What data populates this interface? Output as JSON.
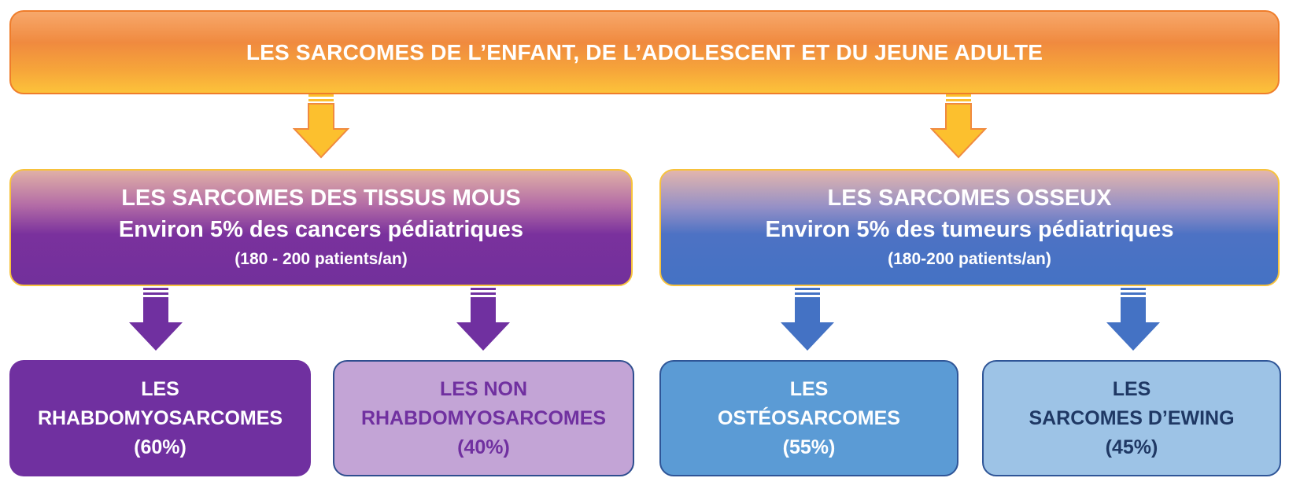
{
  "title": "LES SARCOMES DE L’ENFANT, DE L’ADOLESCENT ET DU JEUNE ADULTE",
  "categories": [
    {
      "heading": "LES SARCOMES DES TISSUS MOUS",
      "share": "Environ 5% des cancers pédiatriques",
      "patients": "(180 - 200 patients/an)",
      "color": "#7030a0"
    },
    {
      "heading": "LES SARCOMES OSSEUX",
      "share": "Environ 5% des tumeurs pédiatriques",
      "patients": "(180-200 patients/an)",
      "color": "#4472c4"
    }
  ],
  "subtypes": [
    {
      "line1": "LES",
      "line2": "RHABDOMYOSARCOMES",
      "pct": "(60%)",
      "color": "#7030a0"
    },
    {
      "line1": "LES NON",
      "line2": "RHABDOMYOSARCOMES",
      "pct": "(40%)",
      "color": "#c3a4d6"
    },
    {
      "line1": "LES",
      "line2": "OSTÉOSARCOMES",
      "pct": "(55%)",
      "color": "#5b9bd5"
    },
    {
      "line1": "LES",
      "line2": "SARCOMES D’EWING",
      "pct": "(45%)",
      "color": "#9dc3e6"
    }
  ],
  "arrow_colors": {
    "top": "#fcc02e",
    "soft_tissue": "#7030a0",
    "bone": "#4472c4"
  }
}
